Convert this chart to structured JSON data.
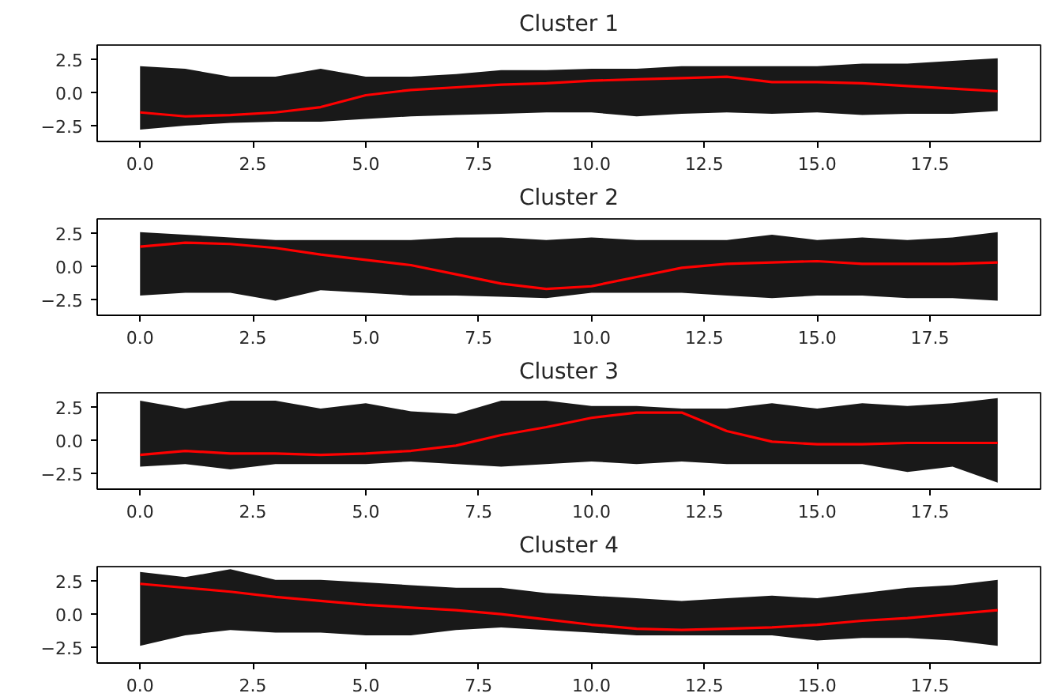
{
  "chart_data": [
    {
      "type": "line",
      "title": "Cluster 1",
      "x": [
        0,
        1,
        2,
        3,
        4,
        5,
        6,
        7,
        8,
        9,
        10,
        11,
        12,
        13,
        14,
        15,
        16,
        17,
        18,
        19
      ],
      "xlim": [
        -0.95,
        19.95
      ],
      "ylim": [
        -3.7,
        3.6
      ],
      "xticks": [
        {
          "value": 0,
          "label": "0.0"
        },
        {
          "value": 2.5,
          "label": "2.5"
        },
        {
          "value": 5,
          "label": "5.0"
        },
        {
          "value": 7.5,
          "label": "7.5"
        },
        {
          "value": 10,
          "label": "10.0"
        },
        {
          "value": 12.5,
          "label": "12.5"
        },
        {
          "value": 15,
          "label": "15.0"
        },
        {
          "value": 17.5,
          "label": "17.5"
        }
      ],
      "yticks": [
        {
          "value": -2.5,
          "label": "−2.5"
        },
        {
          "value": 0,
          "label": "0.0"
        },
        {
          "value": 2.5,
          "label": "2.5"
        }
      ],
      "series": [
        {
          "color": "#ff0000",
          "values": [
            -1.5,
            -1.8,
            -1.7,
            -1.5,
            -1.1,
            -0.2,
            0.2,
            0.4,
            0.6,
            0.7,
            0.9,
            1.0,
            1.1,
            1.2,
            0.8,
            0.8,
            0.7,
            0.5,
            0.3,
            0.1
          ],
          "lower": [
            -2.8,
            -2.5,
            -2.3,
            -2.2,
            -2.2,
            -2.0,
            -1.8,
            -1.7,
            -1.6,
            -1.5,
            -1.5,
            -1.8,
            -1.6,
            -1.5,
            -1.6,
            -1.5,
            -1.7,
            -1.6,
            -1.6,
            -1.4
          ],
          "upper": [
            2.0,
            1.8,
            1.2,
            1.2,
            1.8,
            1.2,
            1.2,
            1.4,
            1.7,
            1.7,
            1.8,
            1.8,
            2.0,
            2.0,
            2.0,
            2.0,
            2.2,
            2.2,
            2.4,
            2.6
          ]
        }
      ]
    },
    {
      "type": "line",
      "title": "Cluster 2",
      "x": [
        0,
        1,
        2,
        3,
        4,
        5,
        6,
        7,
        8,
        9,
        10,
        11,
        12,
        13,
        14,
        15,
        16,
        17,
        18,
        19
      ],
      "xlim": [
        -0.95,
        19.95
      ],
      "ylim": [
        -3.7,
        3.6
      ],
      "xticks": [
        {
          "value": 0,
          "label": "0.0"
        },
        {
          "value": 2.5,
          "label": "2.5"
        },
        {
          "value": 5,
          "label": "5.0"
        },
        {
          "value": 7.5,
          "label": "7.5"
        },
        {
          "value": 10,
          "label": "10.0"
        },
        {
          "value": 12.5,
          "label": "12.5"
        },
        {
          "value": 15,
          "label": "15.0"
        },
        {
          "value": 17.5,
          "label": "17.5"
        }
      ],
      "yticks": [
        {
          "value": -2.5,
          "label": "−2.5"
        },
        {
          "value": 0,
          "label": "0.0"
        },
        {
          "value": 2.5,
          "label": "2.5"
        }
      ],
      "series": [
        {
          "color": "#ff0000",
          "values": [
            1.5,
            1.8,
            1.7,
            1.4,
            0.9,
            0.5,
            0.1,
            -0.6,
            -1.3,
            -1.7,
            -1.5,
            -0.8,
            -0.1,
            0.2,
            0.3,
            0.4,
            0.2,
            0.2,
            0.2,
            0.3
          ],
          "lower": [
            -2.2,
            -2.0,
            -2.0,
            -2.6,
            -1.8,
            -2.0,
            -2.2,
            -2.2,
            -2.3,
            -2.4,
            -2.0,
            -2.0,
            -2.0,
            -2.2,
            -2.4,
            -2.2,
            -2.2,
            -2.4,
            -2.4,
            -2.6
          ],
          "upper": [
            2.6,
            2.4,
            2.2,
            2.0,
            2.0,
            2.0,
            2.0,
            2.2,
            2.2,
            2.0,
            2.2,
            2.0,
            2.0,
            2.0,
            2.4,
            2.0,
            2.2,
            2.0,
            2.2,
            2.6
          ]
        }
      ]
    },
    {
      "type": "line",
      "title": "Cluster 3",
      "x": [
        0,
        1,
        2,
        3,
        4,
        5,
        6,
        7,
        8,
        9,
        10,
        11,
        12,
        13,
        14,
        15,
        16,
        17,
        18,
        19
      ],
      "xlim": [
        -0.95,
        19.95
      ],
      "ylim": [
        -3.7,
        3.6
      ],
      "xticks": [
        {
          "value": 0,
          "label": "0.0"
        },
        {
          "value": 2.5,
          "label": "2.5"
        },
        {
          "value": 5,
          "label": "5.0"
        },
        {
          "value": 7.5,
          "label": "7.5"
        },
        {
          "value": 10,
          "label": "10.0"
        },
        {
          "value": 12.5,
          "label": "12.5"
        },
        {
          "value": 15,
          "label": "15.0"
        },
        {
          "value": 17.5,
          "label": "17.5"
        }
      ],
      "yticks": [
        {
          "value": -2.5,
          "label": "−2.5"
        },
        {
          "value": 0,
          "label": "0.0"
        },
        {
          "value": 2.5,
          "label": "2.5"
        }
      ],
      "series": [
        {
          "color": "#ff0000",
          "values": [
            -1.1,
            -0.8,
            -1.0,
            -1.0,
            -1.1,
            -1.0,
            -0.8,
            -0.4,
            0.4,
            1.0,
            1.7,
            2.1,
            2.1,
            0.7,
            -0.1,
            -0.3,
            -0.3,
            -0.2,
            -0.2,
            -0.2
          ],
          "lower": [
            -2.0,
            -1.8,
            -2.2,
            -1.8,
            -1.8,
            -1.8,
            -1.6,
            -1.8,
            -2.0,
            -1.8,
            -1.6,
            -1.8,
            -1.6,
            -1.8,
            -1.8,
            -1.8,
            -1.8,
            -2.4,
            -2.0,
            -3.2
          ],
          "upper": [
            3.0,
            2.4,
            3.0,
            3.0,
            2.4,
            2.8,
            2.2,
            2.0,
            3.0,
            3.0,
            2.6,
            2.6,
            2.4,
            2.4,
            2.8,
            2.4,
            2.8,
            2.6,
            2.8,
            3.2
          ]
        }
      ]
    },
    {
      "type": "line",
      "title": "Cluster 4",
      "x": [
        0,
        1,
        2,
        3,
        4,
        5,
        6,
        7,
        8,
        9,
        10,
        11,
        12,
        13,
        14,
        15,
        16,
        17,
        18,
        19
      ],
      "xlim": [
        -0.95,
        19.95
      ],
      "ylim": [
        -3.7,
        3.6
      ],
      "xticks": [
        {
          "value": 0,
          "label": "0.0"
        },
        {
          "value": 2.5,
          "label": "2.5"
        },
        {
          "value": 5,
          "label": "5.0"
        },
        {
          "value": 7.5,
          "label": "7.5"
        },
        {
          "value": 10,
          "label": "10.0"
        },
        {
          "value": 12.5,
          "label": "12.5"
        },
        {
          "value": 15,
          "label": "15.0"
        },
        {
          "value": 17.5,
          "label": "17.5"
        }
      ],
      "yticks": [
        {
          "value": -2.5,
          "label": "−2.5"
        },
        {
          "value": 0,
          "label": "0.0"
        },
        {
          "value": 2.5,
          "label": "2.5"
        }
      ],
      "series": [
        {
          "color": "#ff0000",
          "values": [
            2.3,
            2.0,
            1.7,
            1.3,
            1.0,
            0.7,
            0.5,
            0.3,
            0.0,
            -0.4,
            -0.8,
            -1.1,
            -1.2,
            -1.1,
            -1.0,
            -0.8,
            -0.5,
            -0.3,
            0.0,
            0.3
          ],
          "lower": [
            -2.4,
            -1.6,
            -1.2,
            -1.4,
            -1.4,
            -1.6,
            -1.6,
            -1.2,
            -1.0,
            -1.2,
            -1.4,
            -1.6,
            -1.6,
            -1.6,
            -1.6,
            -2.0,
            -1.8,
            -1.8,
            -2.0,
            -2.4
          ],
          "upper": [
            3.2,
            2.8,
            3.4,
            2.6,
            2.6,
            2.4,
            2.2,
            2.0,
            2.0,
            1.6,
            1.4,
            1.2,
            1.0,
            1.2,
            1.4,
            1.2,
            1.6,
            2.0,
            2.2,
            2.6
          ]
        }
      ]
    }
  ]
}
